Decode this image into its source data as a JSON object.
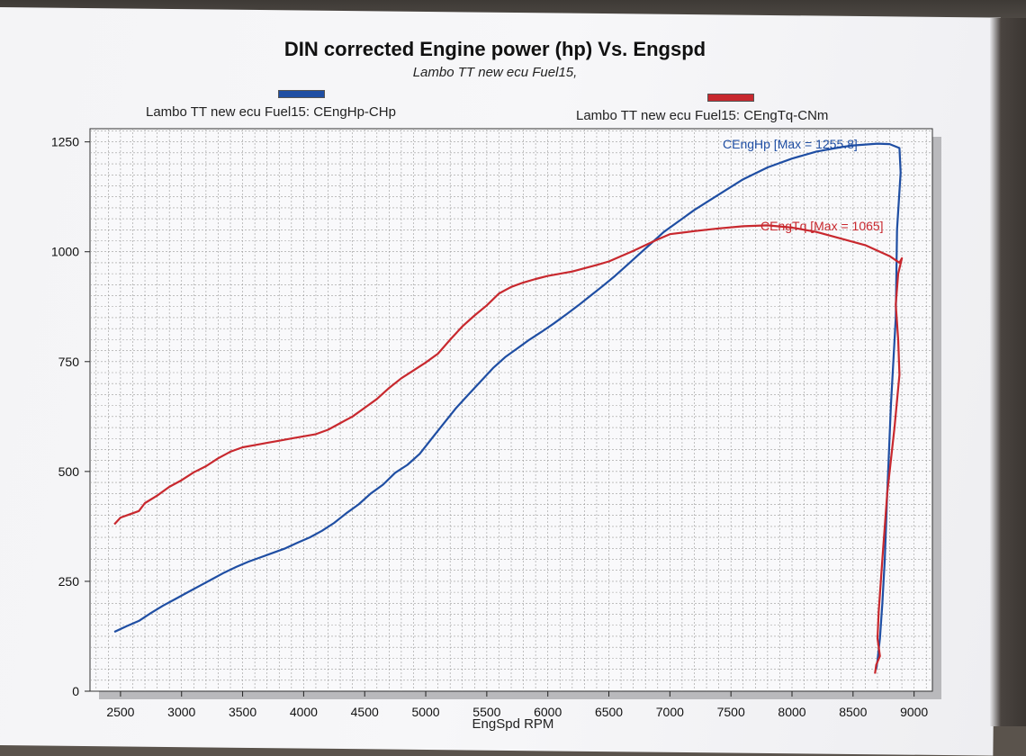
{
  "chart_data": {
    "type": "line",
    "title": "DIN corrected Engine power (hp) Vs. Engspd",
    "subtitle": "Lambo TT new ecu Fuel15,",
    "xlabel": "EngSpd RPM",
    "ylabel": "",
    "xlim": [
      2250,
      9150
    ],
    "ylim": [
      0,
      1280
    ],
    "x_ticks": [
      2500,
      3000,
      3500,
      4000,
      4500,
      5000,
      5500,
      6000,
      6500,
      7000,
      7500,
      8000,
      8500,
      9000
    ],
    "y_ticks": [
      0,
      250,
      500,
      750,
      1000,
      1250
    ],
    "grid": true,
    "legend_position": "top",
    "series": [
      {
        "name": "Lambo TT new ecu Fuel15: CEngHp-CHp",
        "color": "#1f4ea3",
        "annotation": "CEngHp [Max = 1255.8]",
        "x": [
          2450,
          2550,
          2650,
          2750,
          2850,
          2950,
          3050,
          3150,
          3250,
          3350,
          3450,
          3550,
          3650,
          3750,
          3850,
          3950,
          4050,
          4150,
          4250,
          4350,
          4450,
          4550,
          4650,
          4750,
          4850,
          4950,
          5050,
          5150,
          5250,
          5350,
          5450,
          5550,
          5650,
          5750,
          5850,
          5950,
          6050,
          6150,
          6250,
          6350,
          6450,
          6550,
          6650,
          6750,
          6850,
          6950,
          7050,
          7200,
          7400,
          7600,
          7800,
          8000,
          8200,
          8400,
          8500,
          8600,
          8700,
          8800,
          8880,
          8890,
          8860,
          8850,
          8810,
          8780,
          8760,
          8740,
          8720,
          8700,
          8690
        ],
        "y": [
          135,
          148,
          160,
          178,
          195,
          210,
          225,
          240,
          255,
          270,
          283,
          295,
          305,
          315,
          325,
          338,
          350,
          365,
          383,
          405,
          425,
          450,
          470,
          497,
          515,
          540,
          575,
          610,
          645,
          675,
          705,
          735,
          760,
          780,
          800,
          818,
          837,
          857,
          878,
          900,
          922,
          945,
          970,
          995,
          1020,
          1045,
          1065,
          1095,
          1130,
          1165,
          1192,
          1212,
          1228,
          1238,
          1242,
          1244,
          1246,
          1245,
          1236,
          1180,
          1050,
          850,
          650,
          450,
          300,
          200,
          120,
          70,
          50
        ]
      },
      {
        "name": "Lambo TT new ecu Fuel15: CEngTq-CNm",
        "color": "#c8282e",
        "annotation": "CEngTq [Max = 1065]",
        "x": [
          2450,
          2500,
          2550,
          2650,
          2700,
          2800,
          2900,
          3000,
          3100,
          3200,
          3300,
          3400,
          3500,
          3600,
          3700,
          3800,
          3900,
          4000,
          4100,
          4200,
          4300,
          4400,
          4500,
          4600,
          4700,
          4800,
          4900,
          5000,
          5100,
          5200,
          5300,
          5400,
          5500,
          5600,
          5700,
          5800,
          5900,
          6000,
          6200,
          6400,
          6500,
          6600,
          6700,
          6800,
          6900,
          7000,
          7200,
          7400,
          7600,
          7800,
          8000,
          8200,
          8400,
          8600,
          8800,
          8880,
          8900,
          8870,
          8850,
          8870,
          8880,
          8840,
          8780,
          8740,
          8710,
          8700,
          8720,
          8690,
          8680
        ],
        "y": [
          380,
          395,
          400,
          410,
          428,
          445,
          465,
          480,
          498,
          512,
          530,
          545,
          555,
          560,
          565,
          570,
          575,
          580,
          585,
          595,
          610,
          625,
          645,
          665,
          690,
          712,
          730,
          748,
          768,
          800,
          830,
          855,
          878,
          905,
          920,
          930,
          938,
          945,
          955,
          970,
          978,
          990,
          1002,
          1015,
          1028,
          1040,
          1047,
          1053,
          1058,
          1060,
          1055,
          1045,
          1030,
          1015,
          990,
          975,
          985,
          950,
          880,
          800,
          720,
          600,
          450,
          300,
          180,
          120,
          80,
          60,
          40
        ]
      }
    ]
  }
}
